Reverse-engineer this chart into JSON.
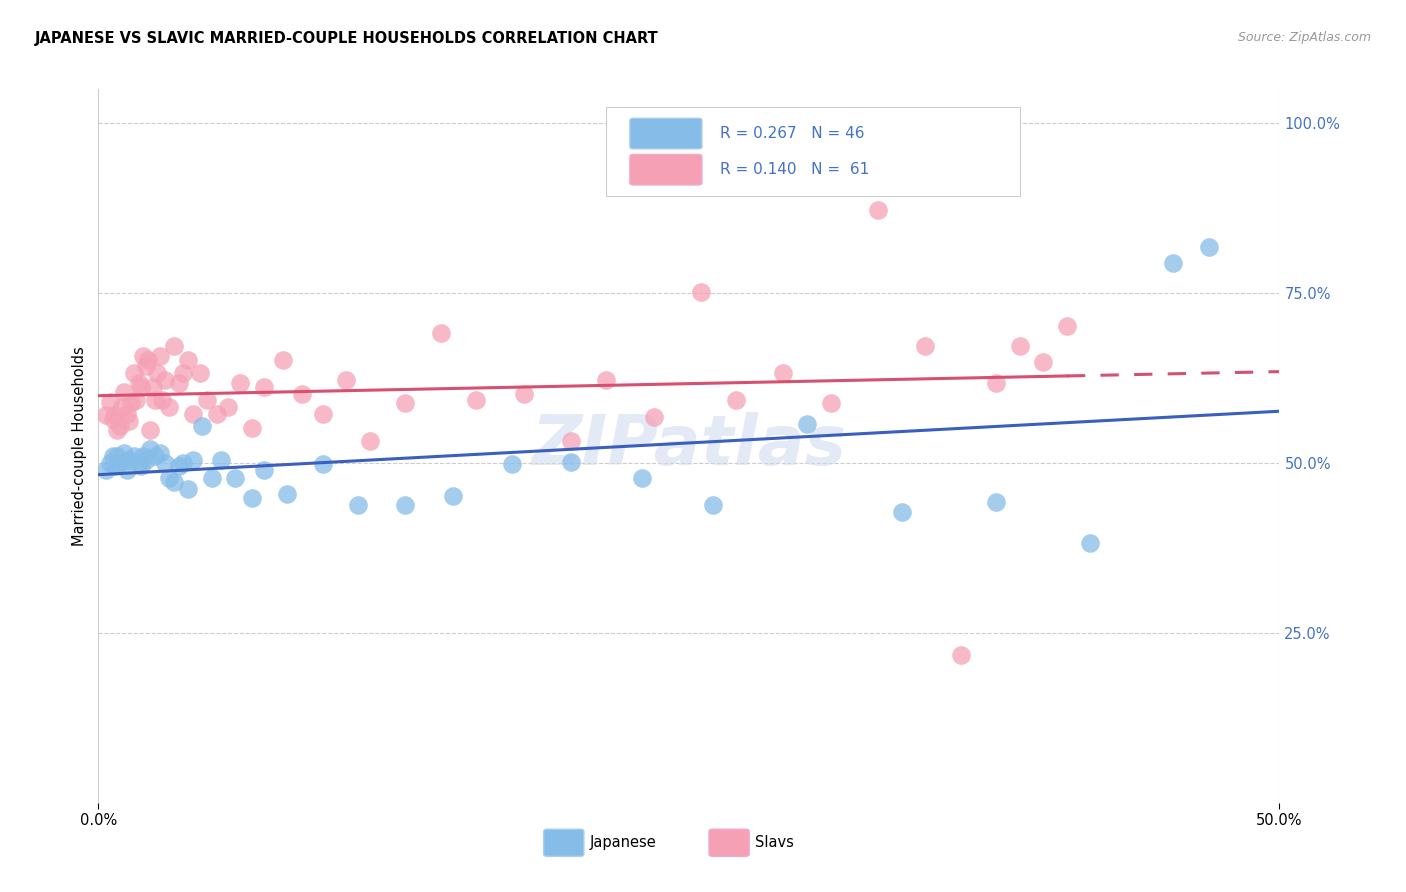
{
  "title": "JAPANESE VS SLAVIC MARRIED-COUPLE HOUSEHOLDS CORRELATION CHART",
  "source": "Source: ZipAtlas.com",
  "ylabel": "Married-couple Households",
  "xlim": [
    0.0,
    0.5
  ],
  "ylim": [
    0.0,
    1.05
  ],
  "ytick_positions": [
    0.25,
    0.5,
    0.75,
    1.0
  ],
  "ytick_labels": [
    "25.0%",
    "50.0%",
    "75.0%",
    "100.0%"
  ],
  "xtick_positions": [
    0.0,
    0.5
  ],
  "xtick_labels": [
    "0.0%",
    "50.0%"
  ],
  "japanese_color": "#85bce8",
  "slavs_color": "#f5a0b5",
  "japanese_line_color": "#3a5fbf",
  "slavs_line_color": "#d85070",
  "background_color": "#ffffff",
  "grid_color": "#cccccc",
  "watermark_text": "ZIPatlas",
  "watermark_color": "#cddaed",
  "legend_r_japanese": "0.267",
  "legend_n_japanese": "46",
  "legend_r_slavs": "0.140",
  "legend_n_slavs": "61",
  "japanese_x": [
    0.003,
    0.005,
    0.006,
    0.007,
    0.008,
    0.009,
    0.01,
    0.011,
    0.012,
    0.013,
    0.015,
    0.017,
    0.018,
    0.019,
    0.02,
    0.022,
    0.024,
    0.026,
    0.028,
    0.03,
    0.032,
    0.034,
    0.036,
    0.038,
    0.04,
    0.044,
    0.048,
    0.052,
    0.058,
    0.065,
    0.07,
    0.08,
    0.095,
    0.11,
    0.13,
    0.15,
    0.175,
    0.2,
    0.23,
    0.26,
    0.3,
    0.34,
    0.38,
    0.42,
    0.455,
    0.47
  ],
  "japanese_y": [
    0.49,
    0.5,
    0.51,
    0.495,
    0.51,
    0.5,
    0.505,
    0.515,
    0.49,
    0.505,
    0.51,
    0.5,
    0.495,
    0.51,
    0.505,
    0.52,
    0.51,
    0.515,
    0.5,
    0.478,
    0.472,
    0.495,
    0.5,
    0.462,
    0.505,
    0.555,
    0.478,
    0.505,
    0.478,
    0.448,
    0.49,
    0.455,
    0.498,
    0.438,
    0.438,
    0.452,
    0.498,
    0.502,
    0.478,
    0.438,
    0.558,
    0.428,
    0.442,
    0.382,
    0.795,
    0.818
  ],
  "slavs_x": [
    0.003,
    0.005,
    0.006,
    0.007,
    0.008,
    0.009,
    0.01,
    0.011,
    0.012,
    0.013,
    0.014,
    0.015,
    0.016,
    0.017,
    0.018,
    0.019,
    0.02,
    0.021,
    0.022,
    0.023,
    0.024,
    0.025,
    0.026,
    0.027,
    0.028,
    0.03,
    0.032,
    0.034,
    0.036,
    0.038,
    0.04,
    0.043,
    0.046,
    0.05,
    0.055,
    0.06,
    0.065,
    0.07,
    0.078,
    0.086,
    0.095,
    0.105,
    0.115,
    0.13,
    0.145,
    0.16,
    0.18,
    0.2,
    0.215,
    0.235,
    0.255,
    0.27,
    0.29,
    0.31,
    0.33,
    0.35,
    0.365,
    0.38,
    0.39,
    0.4,
    0.41
  ],
  "slavs_y": [
    0.57,
    0.59,
    0.565,
    0.57,
    0.548,
    0.555,
    0.582,
    0.605,
    0.572,
    0.562,
    0.588,
    0.632,
    0.592,
    0.618,
    0.612,
    0.658,
    0.642,
    0.652,
    0.548,
    0.612,
    0.592,
    0.632,
    0.658,
    0.592,
    0.622,
    0.582,
    0.672,
    0.618,
    0.632,
    0.652,
    0.572,
    0.632,
    0.592,
    0.572,
    0.582,
    0.618,
    0.552,
    0.612,
    0.652,
    0.602,
    0.572,
    0.622,
    0.532,
    0.588,
    0.692,
    0.592,
    0.602,
    0.532,
    0.622,
    0.568,
    0.752,
    0.592,
    0.632,
    0.588,
    0.872,
    0.672,
    0.218,
    0.618,
    0.672,
    0.648,
    0.702
  ]
}
